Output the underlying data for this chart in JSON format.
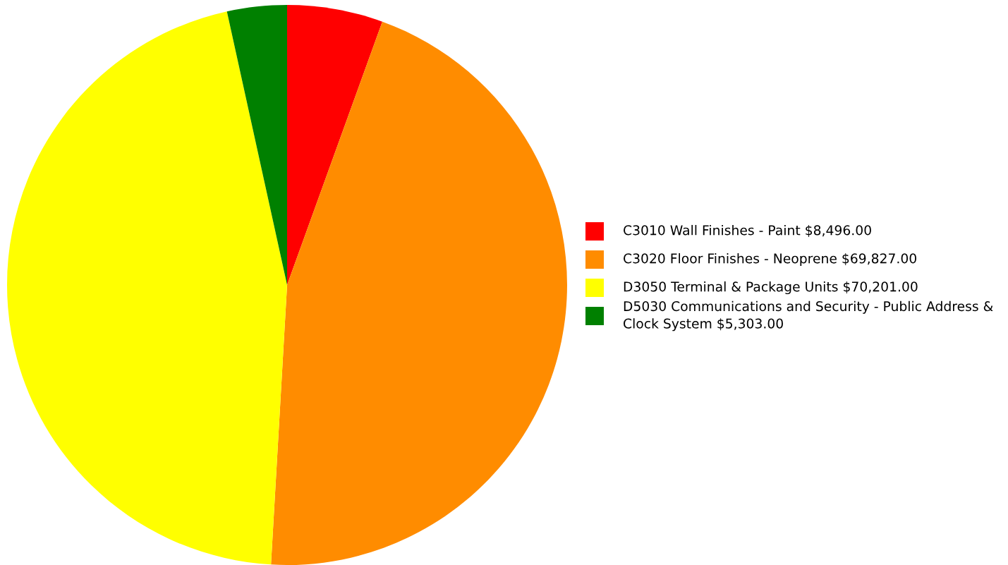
{
  "chart_data": {
    "type": "pie",
    "categories": [
      "C3010 Wall Finishes - Paint",
      "C3020 Floor Finishes - Neoprene",
      "D3050 Terminal & Package Units",
      "D5030 Communications and Security - Public Address & Clock System"
    ],
    "values": [
      8496,
      69827,
      70201,
      5303
    ],
    "value_labels": [
      "$8,496.00",
      "$69,827.00",
      "$70,201.00",
      "$5,303.00"
    ],
    "colors": [
      "#ff0000",
      "#ff8c00",
      "#ffff00",
      "#008000"
    ],
    "legend": "right"
  }
}
